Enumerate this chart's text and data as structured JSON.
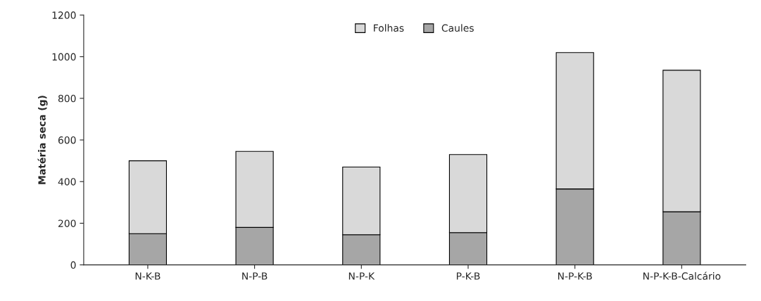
{
  "chart_data": {
    "type": "bar",
    "stacked": true,
    "ylabel": "Matéria seca (g)",
    "categories": [
      "N-K-B",
      "N-P-B",
      "N-P-K",
      "P-K-B",
      "N-P-K-B",
      "N-P-K-B-Calcário"
    ],
    "series": [
      {
        "name": "Caules",
        "color": "#a6a6a6",
        "values": [
          150,
          180,
          145,
          155,
          365,
          255
        ]
      },
      {
        "name": "Folhas",
        "color": "#d9d9d9",
        "values": [
          350,
          365,
          325,
          375,
          655,
          680
        ]
      }
    ],
    "ylim": [
      0,
      1200
    ],
    "yticks": [
      0,
      200,
      400,
      600,
      800,
      1000,
      1200
    ],
    "grid": false,
    "legend": "top"
  }
}
